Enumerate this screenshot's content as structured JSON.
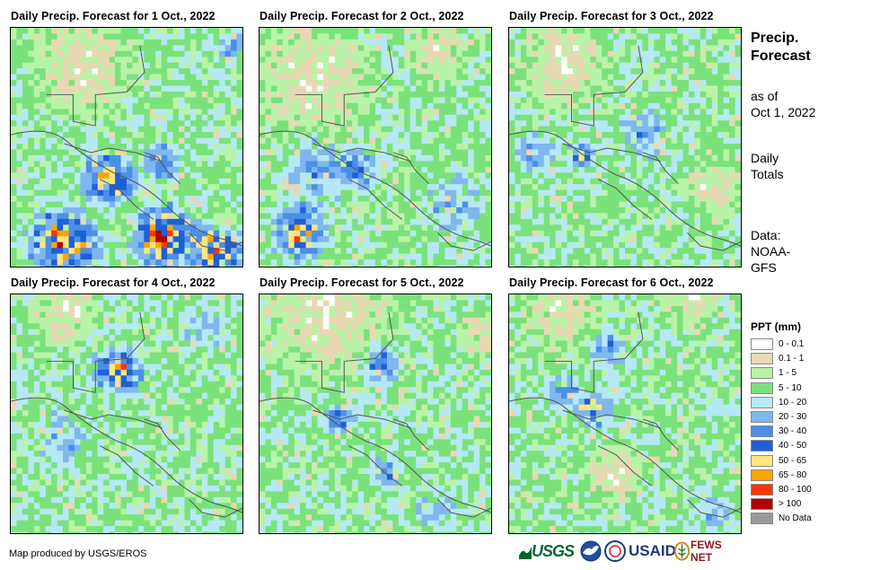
{
  "panels": [
    {
      "title": "Daily Precip. Forecast for 1 Oct., 2022",
      "day": 1
    },
    {
      "title": "Daily Precip. Forecast for 2 Oct., 2022",
      "day": 2
    },
    {
      "title": "Daily Precip. Forecast for 3 Oct., 2022",
      "day": 3
    },
    {
      "title": "Daily Precip. Forecast for 4 Oct., 2022",
      "day": 4
    },
    {
      "title": "Daily Precip. Forecast for 5 Oct., 2022",
      "day": 5
    },
    {
      "title": "Daily Precip. Forecast for 6 Oct., 2022",
      "day": 6
    }
  ],
  "side": {
    "title_line1": "Precip.",
    "title_line2": "Forecast",
    "asof_line1": "as of",
    "asof_line2": "Oct 1, 2022",
    "totals_line1": "Daily",
    "totals_line2": "Totals",
    "data_line1": "Data:",
    "data_line2": "NOAA-",
    "data_line3": "GFS"
  },
  "legend": {
    "title": "PPT (mm)",
    "items": [
      {
        "label": "0 - 0.1",
        "color": "#ffffff"
      },
      {
        "label": "0.1 - 1",
        "color": "#e9d8b4"
      },
      {
        "label": "1 - 5",
        "color": "#b9f3a8"
      },
      {
        "label": "5 - 10",
        "color": "#7be27b"
      },
      {
        "label": "10 - 20",
        "color": "#b5e9f5"
      },
      {
        "label": "20 - 30",
        "color": "#7fb7ee"
      },
      {
        "label": "30 - 40",
        "color": "#4a8fe8"
      },
      {
        "label": "40 - 50",
        "color": "#1f5fd8"
      },
      {
        "label": "50 - 65",
        "color": "#ffe680"
      },
      {
        "label": "65 - 80",
        "color": "#ffa500"
      },
      {
        "label": "80 - 100",
        "color": "#ff3300"
      },
      {
        "label": "> 100",
        "color": "#b30000"
      },
      {
        "label": "No Data",
        "color": "#999999"
      }
    ]
  },
  "credit": "Map produced by USGS/EROS",
  "logos": {
    "usgs": "USGS",
    "usaid": "USAID",
    "fews": "FEWS NET"
  }
}
